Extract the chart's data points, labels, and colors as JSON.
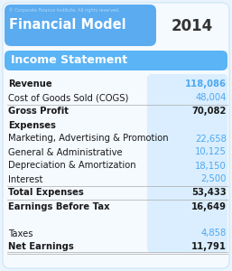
{
  "title": "Financial Model",
  "year": "2014",
  "copyright": "© Corporate Finance Institute. All rights reserved.",
  "section": "Income Statement",
  "rows": [
    {
      "label": "Revenue",
      "value": "118,086",
      "bold": true,
      "blue_value": true,
      "separator_below": false
    },
    {
      "label": "Cost of Goods Sold (COGS)",
      "value": "48,004",
      "bold": false,
      "blue_value": true,
      "separator_below": true
    },
    {
      "label": "Gross Profit",
      "value": "70,082",
      "bold": true,
      "blue_value": false,
      "separator_below": false
    },
    {
      "label": "Expenses",
      "value": "",
      "bold": true,
      "blue_value": false,
      "separator_below": false
    },
    {
      "label": "Marketing, Advertising & Promotion",
      "value": "22,658",
      "bold": false,
      "blue_value": true,
      "separator_below": false
    },
    {
      "label": "General & Administrative",
      "value": "10,125",
      "bold": false,
      "blue_value": true,
      "separator_below": false
    },
    {
      "label": "Depreciation & Amortization",
      "value": "18,150",
      "bold": false,
      "blue_value": true,
      "separator_below": false
    },
    {
      "label": "Interest",
      "value": "2,500",
      "bold": false,
      "blue_value": true,
      "separator_below": true
    },
    {
      "label": "Total Expenses",
      "value": "53,433",
      "bold": true,
      "blue_value": false,
      "separator_below": true
    },
    {
      "label": "Earnings Before Tax",
      "value": "16,649",
      "bold": true,
      "blue_value": false,
      "separator_below": false
    },
    {
      "label": "",
      "value": "",
      "bold": false,
      "blue_value": false,
      "separator_below": false
    },
    {
      "label": "Taxes",
      "value": "4,858",
      "bold": false,
      "blue_value": true,
      "separator_below": false
    },
    {
      "label": "Net Earnings",
      "value": "11,791",
      "bold": true,
      "blue_value": false,
      "separator_below": true
    }
  ],
  "header_blue": "#5aabf0",
  "section_blue": "#5ab4f5",
  "value_blue": "#4da8f0",
  "value_col_bg": "#daeeff",
  "text_dark": "#1a1a1a",
  "copyright_color": "#b8d8f0",
  "fig_bg": "#eaf4fc",
  "card_bg": "#f5faff",
  "sep_color": "#b0b0b0",
  "year_color": "#333333"
}
